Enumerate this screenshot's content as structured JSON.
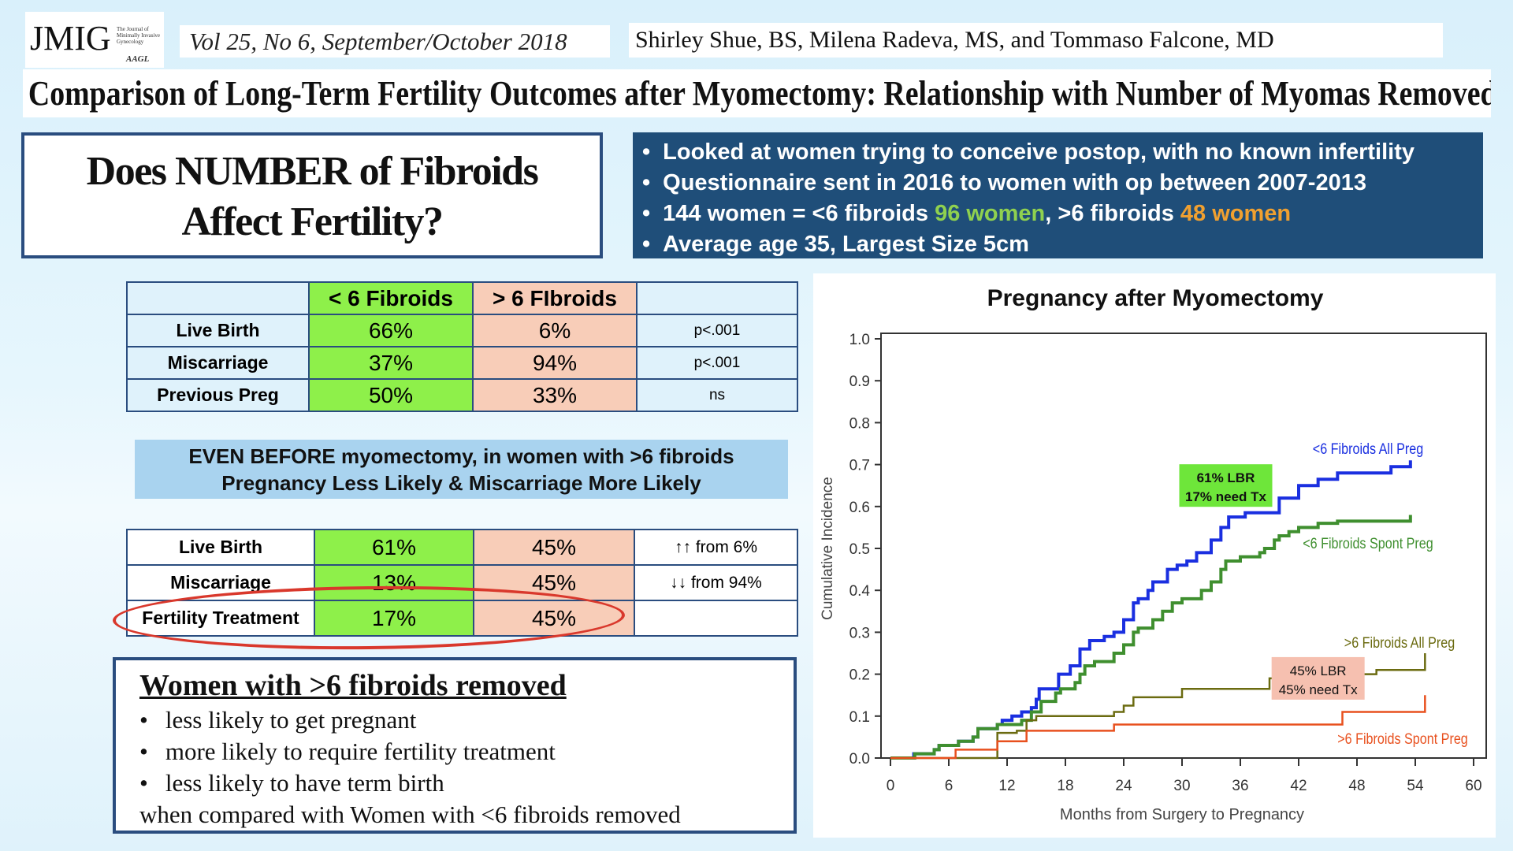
{
  "header": {
    "logo_text": "JMIG",
    "logo_subtitle": "The Journal of Minimally Invasive Gynecology",
    "logo_mark": "AAGL",
    "volume": "Vol 25, No 6, September/October 2018",
    "authors": "Shirley Shue, BS, Milena Radeva, MS, and Tommaso Falcone, MD",
    "title": "Comparison of Long-Term Fertility Outcomes after Myomectomy: Relationship with Number of Myomas Removed"
  },
  "question": {
    "line1": "Does NUMBER of Fibroids",
    "line2": "Affect Fertility?"
  },
  "bullets": {
    "b1": "Looked at women trying to conceive postop, with no known infertility",
    "b2": "Questionnaire sent in 2016 to women with op between 2007-2013",
    "b3_a": "144 women = <6 fibroids ",
    "b3_b": "96 women",
    "b3_c": ", >6 fibroids ",
    "b3_d": "48 women",
    "b4": "Average age 35, Largest Size 5cm"
  },
  "table1": {
    "headers": [
      "",
      "< 6 Fibroids",
      "> 6 FIbroids",
      ""
    ],
    "rows": [
      [
        "Live Birth",
        "66%",
        "6%",
        "p<.001"
      ],
      [
        "Miscarriage",
        "37%",
        "94%",
        "p<.001"
      ],
      [
        "Previous Preg",
        "50%",
        "33%",
        "ns"
      ]
    ]
  },
  "banner": {
    "line1": "EVEN BEFORE myomectomy, in women with >6 fibroids",
    "line2": "Pregnancy Less Likely & Miscarriage More Likely"
  },
  "table2": {
    "rows": [
      [
        "Live Birth",
        "61%",
        "45%",
        "↑↑ from 6%"
      ],
      [
        "Miscarriage",
        "13%",
        "45%",
        "↓↓ from 94%"
      ],
      [
        "Fertility Treatment",
        "17%",
        "45%",
        ""
      ]
    ]
  },
  "summary": {
    "heading": "Women with >6 fibroids removed",
    "items": [
      "less likely to get pregnant",
      "more likely to require fertility treatment",
      "less likely to have term birth"
    ],
    "footer": "when compared with Women with <6 fibroids removed"
  },
  "colors": {
    "navy": "#2a4d7f",
    "green_cell": "#8ef04a",
    "peach_cell": "#f8cdb8",
    "highlight_green": "#8fd14f",
    "highlight_orange": "#f0a030",
    "circle": "#d9382c"
  },
  "chart_data": {
    "type": "line",
    "step": true,
    "title": "Pregnancy after Myomectomy",
    "xlabel": "Months from Surgery to Pregnancy",
    "ylabel": "Cumulative Incidence",
    "xlim": [
      0,
      60
    ],
    "ylim": [
      0,
      1.0
    ],
    "xticks": [
      "0",
      "6",
      "12",
      "18",
      "24",
      "30",
      "36",
      "42",
      "48",
      "54",
      "60"
    ],
    "yticks": [
      "0.0",
      "0.1",
      "0.2",
      "0.3",
      "0.4",
      "0.5",
      "0.6",
      "0.7",
      "0.8",
      "0.9",
      "1.0"
    ],
    "grid": false,
    "series": [
      {
        "name": "<6 Fibroids All Preg",
        "color": "#1a2fe0",
        "points": [
          [
            0,
            0
          ],
          [
            2.4,
            0.01
          ],
          [
            4.5,
            0.02
          ],
          [
            5,
            0.03
          ],
          [
            7,
            0.04
          ],
          [
            8.5,
            0.05
          ],
          [
            9,
            0.07
          ],
          [
            11,
            0.08
          ],
          [
            11.5,
            0.09
          ],
          [
            12.5,
            0.1
          ],
          [
            13.5,
            0.11
          ],
          [
            14.5,
            0.12
          ],
          [
            15,
            0.14
          ],
          [
            15.3,
            0.165
          ],
          [
            17.3,
            0.2
          ],
          [
            18.5,
            0.22
          ],
          [
            19.5,
            0.26
          ],
          [
            20.5,
            0.28
          ],
          [
            22,
            0.29
          ],
          [
            23,
            0.3
          ],
          [
            24,
            0.33
          ],
          [
            25,
            0.37
          ],
          [
            25.5,
            0.38
          ],
          [
            26.5,
            0.4
          ],
          [
            27,
            0.42
          ],
          [
            28.5,
            0.45
          ],
          [
            29.5,
            0.46
          ],
          [
            30.5,
            0.47
          ],
          [
            31.5,
            0.49
          ],
          [
            33,
            0.52
          ],
          [
            34,
            0.55
          ],
          [
            34.8,
            0.575
          ],
          [
            36.5,
            0.585
          ],
          [
            40,
            0.62
          ],
          [
            42,
            0.65
          ],
          [
            44,
            0.665
          ],
          [
            46,
            0.68
          ],
          [
            51.5,
            0.695
          ],
          [
            53.5,
            0.71
          ]
        ]
      },
      {
        "name": "<6 Fibroids Spont Preg",
        "color": "#3f8f2f",
        "points": [
          [
            0,
            0
          ],
          [
            2.5,
            0.01
          ],
          [
            4.5,
            0.02
          ],
          [
            5,
            0.03
          ],
          [
            7,
            0.04
          ],
          [
            8.5,
            0.05
          ],
          [
            9,
            0.07
          ],
          [
            11,
            0.08
          ],
          [
            13.5,
            0.09
          ],
          [
            14.5,
            0.11
          ],
          [
            15.5,
            0.135
          ],
          [
            17,
            0.155
          ],
          [
            17.5,
            0.165
          ],
          [
            19,
            0.18
          ],
          [
            19.5,
            0.2
          ],
          [
            20,
            0.22
          ],
          [
            21,
            0.23
          ],
          [
            23,
            0.25
          ],
          [
            24,
            0.27
          ],
          [
            25,
            0.3
          ],
          [
            25.5,
            0.31
          ],
          [
            27,
            0.33
          ],
          [
            28,
            0.35
          ],
          [
            29,
            0.37
          ],
          [
            30,
            0.38
          ],
          [
            32,
            0.4
          ],
          [
            33,
            0.42
          ],
          [
            34,
            0.45
          ],
          [
            34.5,
            0.47
          ],
          [
            36,
            0.48
          ],
          [
            38,
            0.49
          ],
          [
            38.5,
            0.5
          ],
          [
            39.5,
            0.52
          ],
          [
            40,
            0.53
          ],
          [
            41,
            0.54
          ],
          [
            42,
            0.55
          ],
          [
            44,
            0.56
          ],
          [
            46,
            0.565
          ],
          [
            53.5,
            0.58
          ]
        ]
      },
      {
        "name": ">6 Fibroids All Preg",
        "color": "#6b6b10",
        "points": [
          [
            0,
            0
          ],
          [
            11,
            0.06
          ],
          [
            13,
            0.065
          ],
          [
            14,
            0.09
          ],
          [
            15,
            0.1
          ],
          [
            23,
            0.11
          ],
          [
            24,
            0.125
          ],
          [
            25,
            0.145
          ],
          [
            30,
            0.165
          ],
          [
            39,
            0.19
          ],
          [
            46,
            0.2
          ],
          [
            50,
            0.21
          ],
          [
            55,
            0.25
          ]
        ]
      },
      {
        "name": ">6 Fibroids Spont Preg",
        "color": "#e8501e",
        "points": [
          [
            0,
            0
          ],
          [
            6.7,
            0.02
          ],
          [
            11,
            0.04
          ],
          [
            14,
            0.065
          ],
          [
            23,
            0.08
          ],
          [
            46.5,
            0.11
          ],
          [
            55,
            0.15
          ]
        ]
      }
    ],
    "annotations": [
      {
        "line1": "61% LBR",
        "line2": "17% need Tx",
        "bg": "#6ee63a",
        "at": [
          34.5,
          0.65
        ]
      },
      {
        "line1": "45% LBR",
        "line2": "45% need Tx",
        "bg": "#f6c0b0",
        "at": [
          44,
          0.19
        ]
      }
    ]
  }
}
